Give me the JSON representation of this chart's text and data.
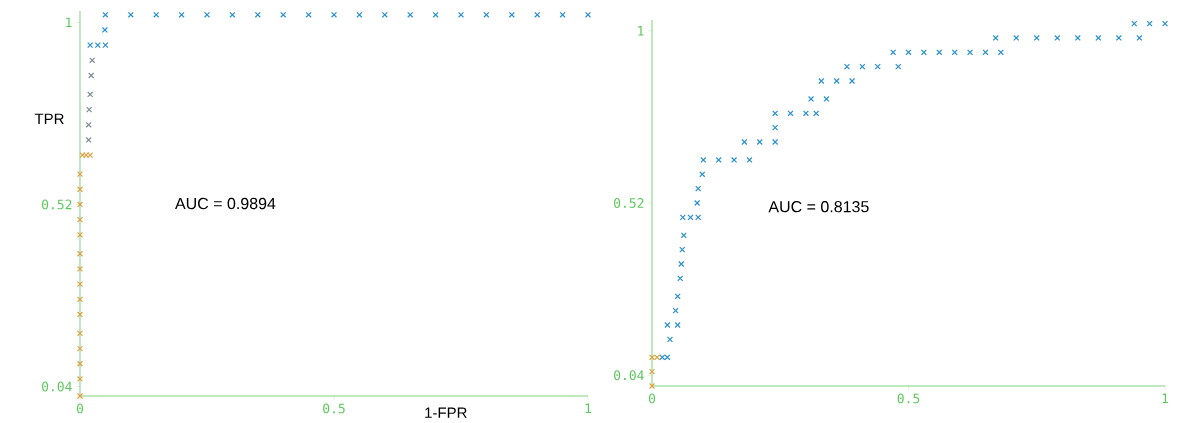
{
  "chart_data": [
    {
      "type": "scatter",
      "marker": "cross",
      "xlabel": "1-FPR",
      "ylabel": "TPR",
      "annotations": [
        "AUC = 0.9894"
      ],
      "xlim": [
        0,
        1
      ],
      "ylim": [
        0.015,
        1.03
      ],
      "xticks": [
        0,
        0.5,
        1
      ],
      "yticks": [
        0.04,
        0.52,
        1
      ],
      "grid": false,
      "series": [
        {
          "color": "#e0a040",
          "x": [
            0,
            0,
            0,
            0,
            0,
            0,
            0,
            0,
            0,
            0,
            0,
            0,
            0,
            0,
            0,
            0.005,
            0.012,
            0.02
          ],
          "values": [
            0.015,
            0.06,
            0.1,
            0.14,
            0.18,
            0.23,
            0.27,
            0.31,
            0.35,
            0.39,
            0.44,
            0.48,
            0.52,
            0.56,
            0.6,
            0.65,
            0.65,
            0.65
          ]
        },
        {
          "color": "#7d8c92",
          "x": [
            0.017,
            0.017,
            0.018,
            0.02,
            0.022,
            0.024
          ],
          "values": [
            0.69,
            0.73,
            0.77,
            0.81,
            0.86,
            0.9
          ]
        },
        {
          "color": "#2a8fd0",
          "x": [
            0.02,
            0.035,
            0.05,
            0.049,
            0.05,
            0.1,
            0.15,
            0.2,
            0.25,
            0.3,
            0.35,
            0.4,
            0.45,
            0.5,
            0.55,
            0.6,
            0.65,
            0.7,
            0.75,
            0.8,
            0.85,
            0.9,
            0.95,
            1.0
          ],
          "values": [
            0.94,
            0.94,
            0.94,
            0.98,
            1.02,
            1.02,
            1.02,
            1.02,
            1.02,
            1.02,
            1.02,
            1.02,
            1.02,
            1.02,
            1.02,
            1.02,
            1.02,
            1.02,
            1.02,
            1.02,
            1.02,
            1.02,
            1.02,
            1.02
          ]
        }
      ]
    },
    {
      "type": "scatter",
      "marker": "cross",
      "annotations": [
        "AUC = 0.8135"
      ],
      "xlim": [
        0,
        1
      ],
      "ylim": [
        0.01,
        1.03
      ],
      "xticks": [
        0,
        0.5,
        1
      ],
      "yticks": [
        0.04,
        0.52,
        1
      ],
      "grid": false,
      "series": [
        {
          "color": "#e0a040",
          "x": [
            0,
            0,
            0,
            0.01
          ],
          "values": [
            0.01,
            0.05,
            0.09,
            0.09
          ]
        },
        {
          "color": "#2a8fd0",
          "x": [
            0.02,
            0.03,
            0.035,
            0.03,
            0.05,
            0.046,
            0.05,
            0.055,
            0.057,
            0.059,
            0.062,
            0.06,
            0.075,
            0.09,
            0.088,
            0.09,
            0.098,
            0.1,
            0.13,
            0.16,
            0.19,
            0.18,
            0.21,
            0.24,
            0.24,
            0.24,
            0.27,
            0.3,
            0.32,
            0.31,
            0.34,
            0.33,
            0.36,
            0.39,
            0.38,
            0.41,
            0.44,
            0.48,
            0.47,
            0.5,
            0.53,
            0.56,
            0.59,
            0.62,
            0.65,
            0.68,
            0.67,
            0.71,
            0.75,
            0.79,
            0.83,
            0.87,
            0.91,
            0.95,
            0.94,
            0.97,
            1.0
          ],
          "values": [
            0.09,
            0.09,
            0.14,
            0.18,
            0.18,
            0.22,
            0.26,
            0.31,
            0.35,
            0.39,
            0.43,
            0.48,
            0.48,
            0.48,
            0.52,
            0.56,
            0.6,
            0.64,
            0.64,
            0.64,
            0.64,
            0.69,
            0.69,
            0.69,
            0.73,
            0.77,
            0.77,
            0.77,
            0.77,
            0.81,
            0.81,
            0.86,
            0.86,
            0.86,
            0.9,
            0.9,
            0.9,
            0.9,
            0.94,
            0.94,
            0.94,
            0.94,
            0.94,
            0.94,
            0.94,
            0.94,
            0.98,
            0.98,
            0.98,
            0.98,
            0.98,
            0.98,
            0.98,
            0.98,
            1.02,
            1.02,
            1.02
          ]
        }
      ]
    }
  ]
}
